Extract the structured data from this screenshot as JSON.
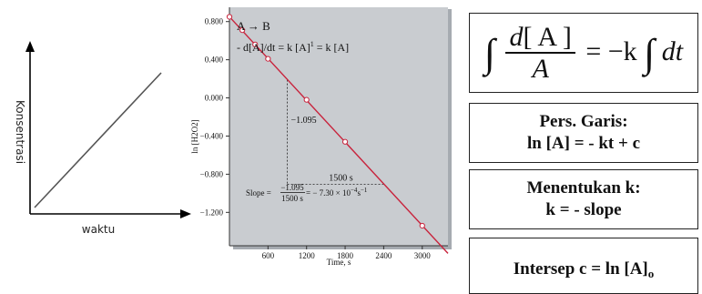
{
  "left_sketch": {
    "y_label": "Konsentrasi",
    "x_label": "waktu"
  },
  "chart_header": {
    "reaction": "A → B",
    "rate_law": "- d[A]/dt = k [A]",
    "rate_law_exp": "1",
    "rate_law_tail": " = k [A]"
  },
  "chart_data": {
    "type": "line",
    "xlabel": "Time, s",
    "ylabel": "ln [H2O2]",
    "xlim": [
      0,
      3400
    ],
    "ylim": [
      -1.55,
      0.95
    ],
    "x_ticks": [
      600,
      1200,
      1800,
      2400,
      3000
    ],
    "x_tick_labels": [
      "600",
      "1200",
      "1800",
      "2400",
      "3000"
    ],
    "y_ticks": [
      0.8,
      0.4,
      0.0,
      -0.4,
      -0.8,
      -1.2
    ],
    "y_tick_labels": [
      "0.800",
      "0.400",
      "0.000",
      "−0.400",
      "−0.800",
      "−1.200"
    ],
    "points": [
      {
        "x": 0,
        "y": 0.85
      },
      {
        "x": 200,
        "y": 0.71
      },
      {
        "x": 400,
        "y": 0.56
      },
      {
        "x": 600,
        "y": 0.41
      },
      {
        "x": 1200,
        "y": -0.02
      },
      {
        "x": 1800,
        "y": -0.46
      },
      {
        "x": 3000,
        "y": -1.34
      }
    ],
    "line": [
      {
        "x": 0,
        "y": 0.85
      },
      {
        "x": 3400,
        "y": -1.63
      }
    ],
    "triangle": {
      "x0": 900,
      "y0": 0.19,
      "x1": 2400,
      "y1": -0.905
    },
    "annot_rise": "−1.095",
    "annot_run": "1500 s",
    "grid": false,
    "background": "#c9ccd0",
    "line_color": "#c8233c"
  },
  "slope_text": {
    "prefix": "Slope = ",
    "num": "−1.095",
    "den": "1500 s",
    "result": " = − 7.30 × 10",
    "result_exp": "−4",
    "unit": "s",
    "unit_exp": "−1"
  },
  "formula_box": {
    "num_d": "d",
    "num_a": "[ A ]",
    "den": "A",
    "rhs": "= −k",
    "dt": "dt"
  },
  "boxes": {
    "pers_title": "Pers. Garis:",
    "pers_eq": "ln [A] = - kt + c",
    "k_title": "Menentukan k:",
    "k_eq": "k = - slope",
    "intercept": "Intersep c = ln [A]",
    "intercept_sub": "o"
  }
}
